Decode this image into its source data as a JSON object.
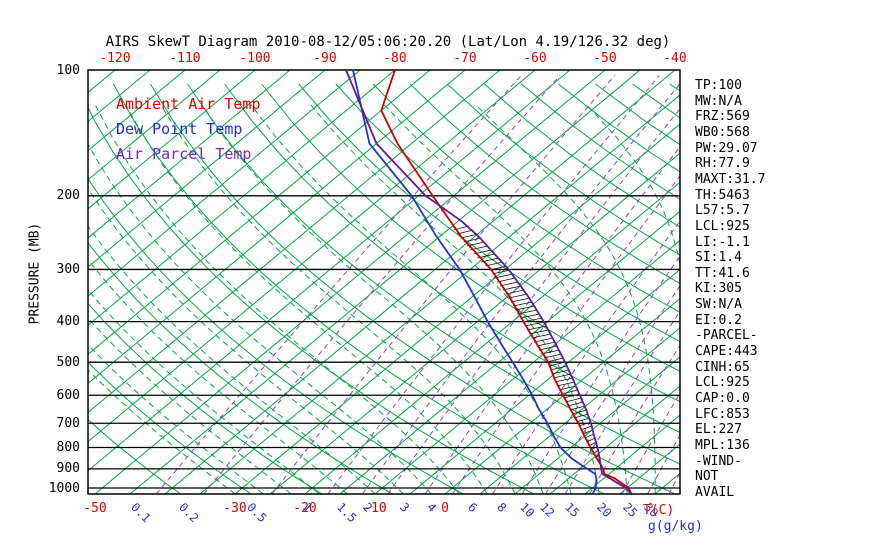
{
  "title": "AIRS SkewT Diagram 2010-08-12/05:06:20.20 (Lat/Lon 4.19/126.32 deg)",
  "legend": {
    "items": [
      {
        "label": "Ambient Air Temp",
        "color": "#e00000"
      },
      {
        "label": "Dew Point Temp",
        "color": "#2030d0"
      },
      {
        "label": "Air Parcel Temp",
        "color": "#7a22c8"
      }
    ]
  },
  "axes": {
    "pressure_axis_label": "PRESSURE (MB)",
    "pressure_ticks": [
      100,
      200,
      300,
      400,
      500,
      600,
      700,
      800,
      900,
      1000
    ],
    "top_temp_ticks": [
      -120,
      -110,
      -100,
      -90,
      -80,
      -70,
      -60,
      -50,
      -40
    ],
    "bottom_temp_ticks": [
      -50,
      -30,
      -20,
      -10,
      0
    ],
    "temp_unit_label": "T(C)",
    "mixing_ratio_ticks": [
      0.1,
      0.2,
      0.5,
      1,
      1.5,
      2,
      3,
      4,
      6,
      8,
      10,
      12,
      15,
      20,
      25,
      30
    ],
    "mixing_unit_label": "g(g/kg)"
  },
  "stats": [
    "TP:100",
    "MW:N/A",
    "FRZ:569",
    "WB0:568",
    "PW:29.07",
    "RH:77.9",
    "MAXT:31.7",
    "TH:5463",
    "L57:5.7",
    "LCL:925",
    "LI:-1.1",
    "SI:1.4",
    "TT:41.6",
    "KI:305",
    "SW:N/A",
    "EI:0.2",
    "-PARCEL-",
    "CAPE:443",
    "CINH:65",
    "LCL:925",
    "CAP:0.0",
    "LFC:853",
    "EL:227",
    "MPL:136",
    "-WIND-",
    "NOT",
    "AVAIL"
  ],
  "colors": {
    "isotherm": "#00a843",
    "dry_adiabat": "#00a843",
    "moist_adiabat": "#00a843",
    "mixing_ratio": "#8a3fd0",
    "pressure_line": "#000000",
    "border": "#000000",
    "hatch": "#111111",
    "ambient": "#c80000",
    "dewpoint": "#2135c8",
    "parcel": "#5c1a9c"
  },
  "chart_data": {
    "type": "line",
    "subtype": "skewt_log_p",
    "title": "AIRS SkewT Diagram 2010-08-12/05:06:20.20 (Lat/Lon 4.19/126.32 deg)",
    "x_axis": {
      "label": "T(C)",
      "surface_range": [
        -50,
        35
      ],
      "skew": "45deg",
      "top_edge_ticks": [
        -120,
        -110,
        -100,
        -90,
        -80,
        -70,
        -60,
        -50,
        -40
      ]
    },
    "y_axis": {
      "label": "PRESSURE (MB)",
      "scale": "log",
      "range": [
        100,
        1033
      ]
    },
    "secondary_axis": {
      "label": "g(g/kg)",
      "ticks": [
        0.1,
        0.2,
        0.5,
        1,
        1.5,
        2,
        3,
        4,
        6,
        8,
        10,
        12,
        15,
        20,
        25,
        30
      ]
    },
    "series": [
      {
        "name": "Ambient Air Temp",
        "color_key": "ambient",
        "points": [
          [
            100,
            -80
          ],
          [
            125,
            -75
          ],
          [
            150,
            -67
          ],
          [
            200,
            -53
          ],
          [
            250,
            -42
          ],
          [
            300,
            -32
          ],
          [
            350,
            -24.5
          ],
          [
            400,
            -18.4
          ],
          [
            450,
            -12.9
          ],
          [
            500,
            -7.9
          ],
          [
            550,
            -4
          ],
          [
            600,
            -0.1
          ],
          [
            650,
            3.5
          ],
          [
            700,
            6.9
          ],
          [
            750,
            9.9
          ],
          [
            800,
            12.8
          ],
          [
            850,
            15.6
          ],
          [
            900,
            18.3
          ],
          [
            925,
            19.3
          ],
          [
            950,
            21.7
          ],
          [
            1000,
            25.2
          ],
          [
            1030,
            26.5
          ]
        ]
      },
      {
        "name": "Dew Point Temp",
        "color_key": "dewpoint",
        "points": [
          [
            100,
            -86
          ],
          [
            150,
            -71
          ],
          [
            200,
            -56
          ],
          [
            250,
            -45.5
          ],
          [
            300,
            -36.5
          ],
          [
            350,
            -29.5
          ],
          [
            400,
            -23.5
          ],
          [
            450,
            -18
          ],
          [
            500,
            -13
          ],
          [
            550,
            -8.5
          ],
          [
            600,
            -4.5
          ],
          [
            650,
            -1
          ],
          [
            700,
            2.5
          ],
          [
            750,
            5.5
          ],
          [
            800,
            8.5
          ],
          [
            850,
            12
          ],
          [
            900,
            16
          ],
          [
            925,
            18
          ],
          [
            950,
            19
          ],
          [
            1000,
            20.5
          ],
          [
            1030,
            21
          ]
        ]
      },
      {
        "name": "Air Parcel Temp",
        "color_key": "parcel",
        "points": [
          [
            100,
            -87
          ],
          [
            150,
            -70
          ],
          [
            200,
            -54
          ],
          [
            230,
            -44.5
          ],
          [
            250,
            -39.5
          ],
          [
            300,
            -29.5
          ],
          [
            350,
            -21.8
          ],
          [
            400,
            -15.5
          ],
          [
            450,
            -10.2
          ],
          [
            500,
            -5.5
          ],
          [
            550,
            -1.4
          ],
          [
            600,
            2.3
          ],
          [
            650,
            5.7
          ],
          [
            700,
            8.7
          ],
          [
            750,
            11.3
          ],
          [
            800,
            13.8
          ],
          [
            850,
            16
          ],
          [
            900,
            18
          ],
          [
            925,
            19
          ],
          [
            950,
            21
          ],
          [
            1000,
            24.8
          ],
          [
            1030,
            26.4
          ]
        ]
      }
    ],
    "hatched_region": {
      "name": "CAPE area between parcel and ambient",
      "pressure_range": [
        235,
        920
      ]
    },
    "background": {
      "isotherms_deg_step": 5,
      "dry_adiabats_theta_range": [
        -40,
        180,
        10
      ],
      "moist_adiabats_surface_temps": [
        -30,
        34,
        4
      ],
      "grid": "on"
    }
  }
}
